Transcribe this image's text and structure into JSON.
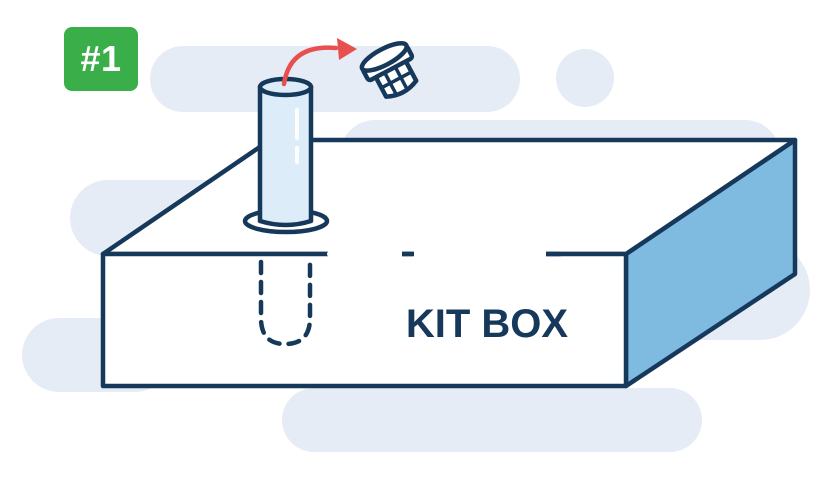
{
  "step": {
    "label": "#1"
  },
  "box": {
    "label": "KIT BOX"
  },
  "icons": {
    "tube": "test-tube-icon",
    "cap": "tube-cap-icon",
    "arrow": "curved-arrow-icon"
  },
  "colors": {
    "outline": "#16385a",
    "box_side": "#7fbbe0",
    "box_face": "#ffffff",
    "tube_fill": "#dcecf8",
    "arrow": "#e8504f",
    "badge": "#3aae49",
    "cloud": "#e6ecf6"
  }
}
